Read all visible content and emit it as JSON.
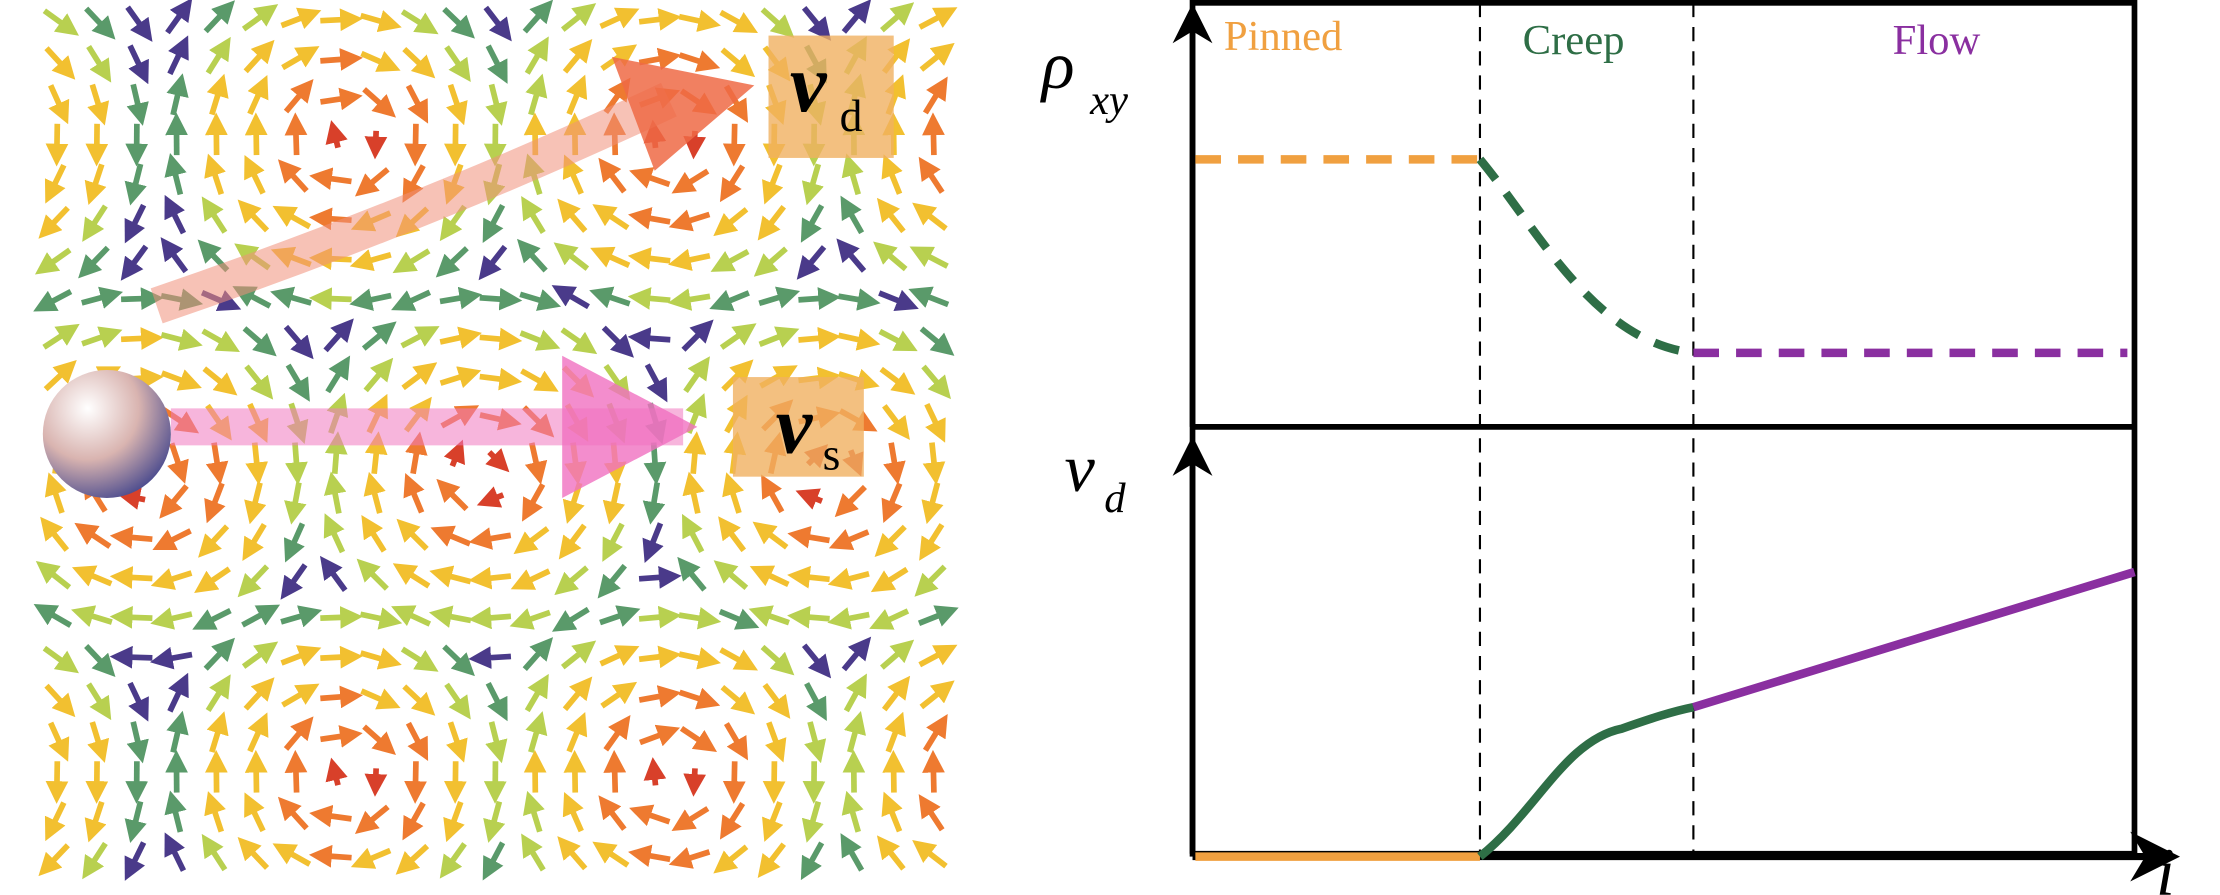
{
  "illustration": {
    "drift_velocity": {
      "symbol": "v",
      "subscript": "d"
    },
    "spin_velocity": {
      "symbol": "v",
      "subscript": "s"
    }
  },
  "plot": {
    "regions": [
      "Pinned",
      "Creep",
      "Flow"
    ],
    "top_axis": {
      "symbol": "ρ",
      "subscript": "xy"
    },
    "bottom_axis": {
      "symbol": "v",
      "subscript": "d"
    },
    "x_axis": "i"
  }
}
